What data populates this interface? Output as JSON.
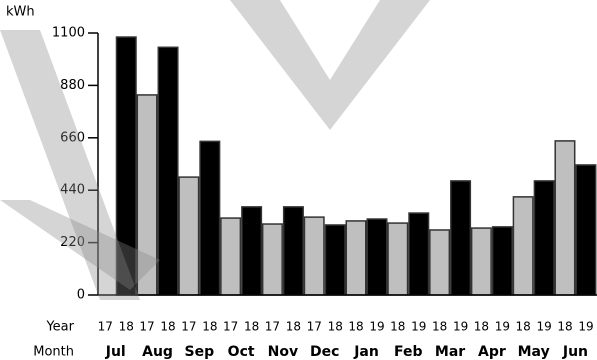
{
  "chart_data": {
    "type": "bar",
    "y_axis_label": "kWh",
    "row_labels": [
      "Year",
      "Month"
    ],
    "categories": [
      "Jul",
      "Aug",
      "Sep",
      "Oct",
      "Nov",
      "Dec",
      "Jan",
      "Feb",
      "Mar",
      "Apr",
      "May",
      "Jun"
    ],
    "year_labels": [
      [
        "17",
        "18"
      ],
      [
        "17",
        "18"
      ],
      [
        "17",
        "18"
      ],
      [
        "17",
        "18"
      ],
      [
        "17",
        "18"
      ],
      [
        "17",
        "18"
      ],
      [
        "18",
        "19"
      ],
      [
        "18",
        "19"
      ],
      [
        "18",
        "19"
      ],
      [
        "18",
        "19"
      ],
      [
        "18",
        "19"
      ],
      [
        "18",
        "19"
      ]
    ],
    "series": [
      {
        "color": "#bfbfbf",
        "values": [
          null,
          840,
          495,
          323,
          298,
          327,
          311,
          302,
          273,
          281,
          412,
          647
        ]
      },
      {
        "color": "#000000",
        "values": [
          1083,
          1040,
          645,
          370,
          370,
          294,
          319,
          344,
          479,
          286,
          479,
          546
        ]
      }
    ],
    "ylim": [
      0,
      1100
    ],
    "yticks": [
      0,
      220,
      440,
      660,
      880,
      1100
    ]
  }
}
